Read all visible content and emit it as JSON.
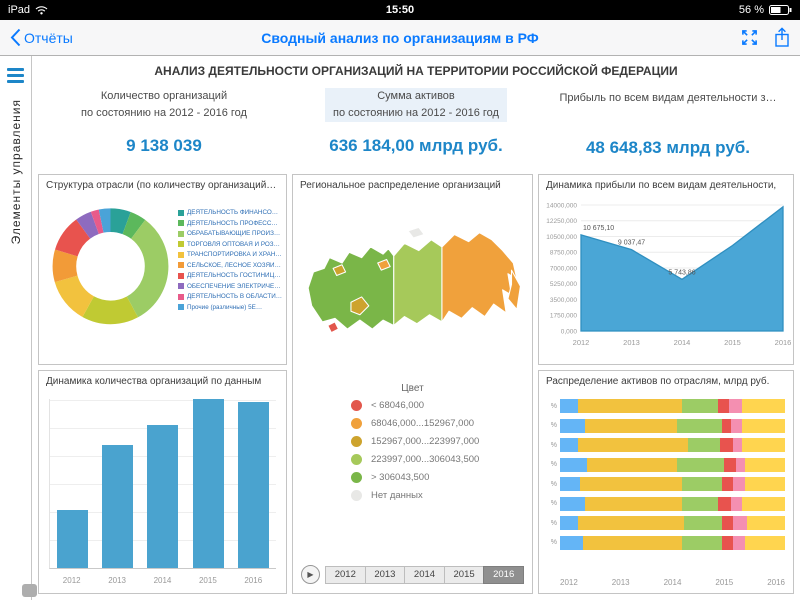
{
  "status_bar": {
    "device": "iPad",
    "time": "15:50",
    "battery": "56 %"
  },
  "nav": {
    "back_label": "Отчёты",
    "title": "Сводный анализ по организациям в РФ"
  },
  "sidebar": {
    "label": "Элементы управления"
  },
  "report": {
    "header": "АНАЛИЗ ДЕЯТЕЛЬНОСТИ ОРГАНИЗАЦИЙ НА ТЕРРИТОРИИ РОССИЙСКОЙ ФЕДЕРАЦИИ"
  },
  "kpis": [
    {
      "label_line1": "Количество организаций",
      "label_line2": "по состоянию на 2012 - 2016 год",
      "value": "9 138 039"
    },
    {
      "label_line1": "Сумма активов",
      "label_line2": "по состоянию на 2012 - 2016 год",
      "value": "636 184,00 млрд руб."
    },
    {
      "label_line1": "Прибыль по всем видам деятельности з…",
      "label_line2": "",
      "value": "48 648,83 млрд руб."
    }
  ],
  "panel_titles": {
    "donut": "Структура отрасли (по количеству организаций), %",
    "bars": "Динамика количества организаций по данным",
    "map": "Региональное распределение организаций",
    "area": "Динамика прибыли по всем видам деятельности,",
    "stacked": "Распределение активов по отраслям, млрд руб."
  },
  "map_panel": {
    "legend_title": "Цвет",
    "legend": [
      {
        "class": "1",
        "label": "< 68046,000",
        "color": "#e2574c"
      },
      {
        "class": "2",
        "label": "68046,000...152967,000",
        "color": "#f0a13c"
      },
      {
        "class": "3",
        "label": "152967,000...223997,000",
        "color": "#cda32d"
      },
      {
        "class": "4",
        "label": "223997,000...306043,500",
        "color": "#a6c95a"
      },
      {
        "class": "5",
        "label": "> 306043,500",
        "color": "#7ab648"
      },
      {
        "class": "0",
        "label": "Нет данных",
        "color": "#e8e8e6"
      }
    ],
    "years": [
      "2012",
      "2013",
      "2014",
      "2015",
      "2016"
    ],
    "active_year": "2016",
    "play_glyph": "▶"
  },
  "chart_data": [
    {
      "id": "industry_donut",
      "type": "pie",
      "title": "Структура отрасли (по количеству организаций), %",
      "labels": [
        "ДЕЯТЕЛЬНОСТЬ ФИНАНСОВА…",
        "ДЕЯТЕЛЬНОСТЬ ПРОФЕССИО…",
        "ОБРАБАТЫВАЮЩИЕ ПРОИЗВ…",
        "ТОРГОВЛЯ ОПТОВАЯ И РОЗН…",
        "ТРАНСПОРТИРОВКА И ХРАН…",
        "СЕЛЬСКОЕ, ЛЕСНОЕ ХОЗЯЙС…",
        "ДЕЯТЕЛЬНОСТЬ ГОСТИНИЦ…",
        "ОБЕСПЕЧЕНИЕ ЭЛЕКТРИЧЕС…",
        "ДЕЯТЕЛЬНОСТЬ В ОБЛАСТИ…",
        "Прочие (различные) 5Е…"
      ],
      "values": [
        5,
        4,
        28,
        14,
        11,
        8,
        9,
        4,
        2,
        3
      ],
      "colors": [
        "#2aa198",
        "#5cb85c",
        "#9ccc65",
        "#c0ca33",
        "#f2c23e",
        "#f29b38",
        "#e8534e",
        "#8e6bbf",
        "#e85b8a",
        "#4aa3d8"
      ]
    },
    {
      "id": "org_dynamics",
      "type": "bar",
      "title": "Динамика количества организаций по данным",
      "categories": [
        "2012",
        "2013",
        "2014",
        "2015",
        "2016"
      ],
      "values": [
        0.9,
        1.9,
        2.2,
        2.6,
        2.55
      ],
      "bar_color": "#4aa3cf"
    },
    {
      "id": "profit_dynamics",
      "type": "area",
      "title": "Динамика прибыли по всем видам деятельности,",
      "categories": [
        "2012",
        "2013",
        "2014",
        "2015",
        "2016"
      ],
      "values": [
        10675.1,
        9037.47,
        5743.86,
        9500,
        13800
      ],
      "point_labels": [
        "10 675,10",
        "9 037,47",
        "5 743,86",
        "",
        ""
      ],
      "y_ticks": [
        "14000,000",
        "12250,000",
        "10500,000",
        "8750,000",
        "7000,000",
        "5250,000",
        "3500,000",
        "1750,000",
        "0,000"
      ],
      "ylim": [
        0,
        14000
      ],
      "fill_color": "#4aa6d6",
      "line_color": "#2f8fc0"
    },
    {
      "id": "assets_by_industry",
      "type": "bar",
      "subtype": "stacked-horizontal",
      "title": "Распределение активов по отраслям, млрд руб.",
      "y_label": "%",
      "x_labels": [
        "2012",
        "2013",
        "2014",
        "2015",
        "2016"
      ],
      "rows": [
        [
          [
            "#64b5f6",
            8
          ],
          [
            "#f2c23e",
            46
          ],
          [
            "#9ccc65",
            16
          ],
          [
            "#e8534e",
            5
          ],
          [
            "#f48fb1",
            6
          ],
          [
            "#ffd54f",
            19
          ]
        ],
        [
          [
            "#64b5f6",
            11
          ],
          [
            "#f2c23e",
            41
          ],
          [
            "#9ccc65",
            20
          ],
          [
            "#e8534e",
            4
          ],
          [
            "#f48fb1",
            5
          ],
          [
            "#ffd54f",
            19
          ]
        ],
        [
          [
            "#64b5f6",
            8
          ],
          [
            "#f2c23e",
            49
          ],
          [
            "#9ccc65",
            14
          ],
          [
            "#e8534e",
            6
          ],
          [
            "#f48fb1",
            4
          ],
          [
            "#ffd54f",
            19
          ]
        ],
        [
          [
            "#64b5f6",
            12
          ],
          [
            "#f2c23e",
            40
          ],
          [
            "#9ccc65",
            21
          ],
          [
            "#e8534e",
            5
          ],
          [
            "#f48fb1",
            4
          ],
          [
            "#ffd54f",
            18
          ]
        ],
        [
          [
            "#64b5f6",
            9
          ],
          [
            "#f2c23e",
            45
          ],
          [
            "#9ccc65",
            18
          ],
          [
            "#e8534e",
            5
          ],
          [
            "#f48fb1",
            5
          ],
          [
            "#ffd54f",
            18
          ]
        ],
        [
          [
            "#64b5f6",
            11
          ],
          [
            "#f2c23e",
            43
          ],
          [
            "#9ccc65",
            16
          ],
          [
            "#e8534e",
            6
          ],
          [
            "#f48fb1",
            5
          ],
          [
            "#ffd54f",
            19
          ]
        ],
        [
          [
            "#64b5f6",
            8
          ],
          [
            "#f2c23e",
            47
          ],
          [
            "#9ccc65",
            17
          ],
          [
            "#e8534e",
            5
          ],
          [
            "#f48fb1",
            6
          ],
          [
            "#ffd54f",
            17
          ]
        ],
        [
          [
            "#64b5f6",
            10
          ],
          [
            "#f2c23e",
            44
          ],
          [
            "#9ccc65",
            18
          ],
          [
            "#e8534e",
            5
          ],
          [
            "#f48fb1",
            5
          ],
          [
            "#ffd54f",
            18
          ]
        ]
      ]
    }
  ]
}
